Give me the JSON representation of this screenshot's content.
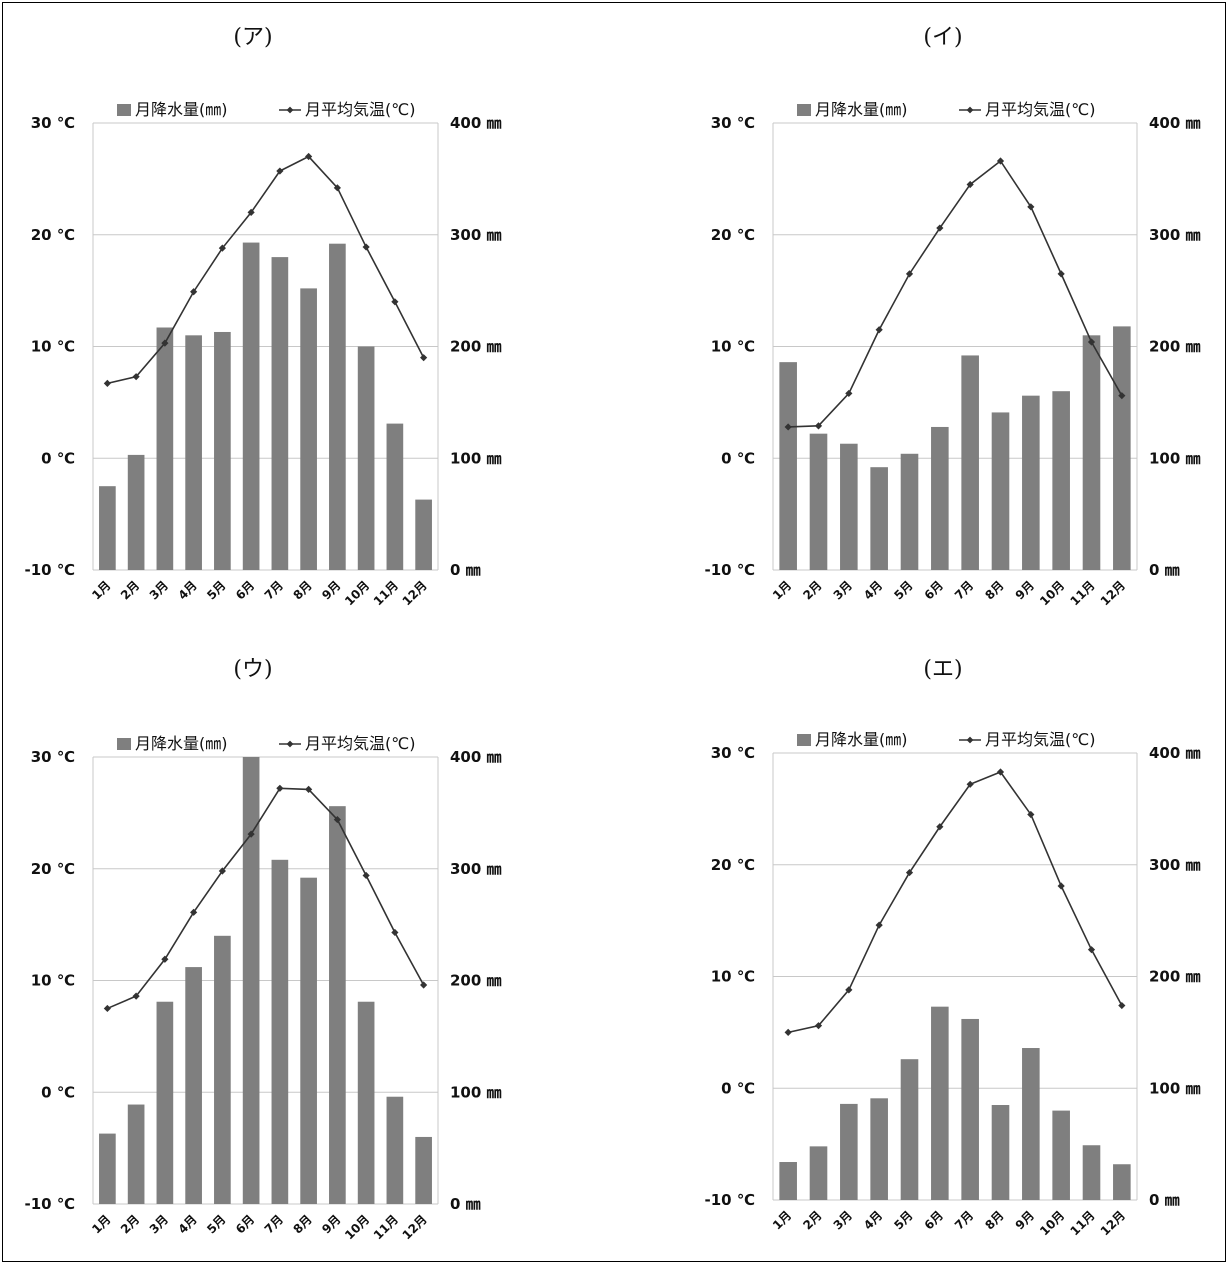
{
  "legend": {
    "precip_label": "月降水量(㎜)",
    "temp_label": "月平均気温(℃)"
  },
  "colors": {
    "bar": "#7f7f7f",
    "line": "#333333",
    "grid": "#c8c8c8"
  },
  "chart_data": [
    {
      "type": "bar",
      "title": "(ア)",
      "categories": [
        "1月",
        "2月",
        "3月",
        "4月",
        "5月",
        "6月",
        "7月",
        "8月",
        "9月",
        "10月",
        "11月",
        "12月"
      ],
      "y_left": {
        "ticks": [
          "-10 ℃",
          "0 ℃",
          "10 ℃",
          "20 ℃",
          "30 ℃"
        ],
        "range": [
          -10,
          30
        ],
        "unit": "℃"
      },
      "y_right": {
        "ticks": [
          "0 ㎜",
          "100 ㎜",
          "200 ㎜",
          "300 ㎜",
          "400 ㎜"
        ],
        "range": [
          0,
          400
        ],
        "unit": "㎜"
      },
      "series": [
        {
          "name": "月降水量(㎜)",
          "type": "bar",
          "axis": "right",
          "values": [
            75,
            103,
            217,
            210,
            213,
            293,
            280,
            252,
            292,
            200,
            131,
            63
          ]
        },
        {
          "name": "月平均気温(℃)",
          "type": "line",
          "axis": "left",
          "values": [
            6.7,
            7.3,
            10.3,
            14.9,
            18.8,
            22.0,
            25.7,
            27.0,
            24.2,
            18.9,
            14.0,
            9.0
          ]
        }
      ],
      "grid": true,
      "legend_position": "top"
    },
    {
      "type": "bar",
      "title": "(イ)",
      "categories": [
        "1月",
        "2月",
        "3月",
        "4月",
        "5月",
        "6月",
        "7月",
        "8月",
        "9月",
        "10月",
        "11月",
        "12月"
      ],
      "y_left": {
        "ticks": [
          "-10 ℃",
          "0 ℃",
          "10 ℃",
          "20 ℃",
          "30 ℃"
        ],
        "range": [
          -10,
          30
        ],
        "unit": "℃"
      },
      "y_right": {
        "ticks": [
          "0 ㎜",
          "100 ㎜",
          "200 ㎜",
          "300 ㎜",
          "400 ㎜"
        ],
        "range": [
          0,
          400
        ],
        "unit": "㎜"
      },
      "series": [
        {
          "name": "月降水量(㎜)",
          "type": "bar",
          "axis": "right",
          "values": [
            186,
            122,
            113,
            92,
            104,
            128,
            192,
            141,
            156,
            160,
            210,
            218
          ]
        },
        {
          "name": "月平均気温(℃)",
          "type": "line",
          "axis": "left",
          "values": [
            2.8,
            2.9,
            5.8,
            11.5,
            16.5,
            20.6,
            24.5,
            26.6,
            22.5,
            16.5,
            10.4,
            5.6
          ]
        }
      ],
      "grid": true,
      "legend_position": "top"
    },
    {
      "type": "bar",
      "title": "(ウ)",
      "categories": [
        "1月",
        "2月",
        "3月",
        "4月",
        "5月",
        "6月",
        "7月",
        "8月",
        "9月",
        "10月",
        "11月",
        "12月"
      ],
      "y_left": {
        "ticks": [
          "-10 ℃",
          "0 ℃",
          "10 ℃",
          "20 ℃",
          "30 ℃"
        ],
        "range": [
          -10,
          30
        ],
        "unit": "℃"
      },
      "y_right": {
        "ticks": [
          "0 ㎜",
          "100 ㎜",
          "200 ㎜",
          "300 ㎜",
          "400 ㎜"
        ],
        "range": [
          0,
          400
        ],
        "unit": "㎜"
      },
      "series": [
        {
          "name": "月降水量(㎜)",
          "type": "bar",
          "axis": "right",
          "values": [
            63,
            89,
            181,
            212,
            240,
            400,
            308,
            292,
            356,
            181,
            96,
            60
          ]
        },
        {
          "name": "月平均気温(℃)",
          "type": "line",
          "axis": "left",
          "values": [
            7.5,
            8.6,
            11.9,
            16.1,
            19.8,
            23.1,
            27.2,
            27.1,
            24.4,
            19.4,
            14.3,
            9.6
          ]
        }
      ],
      "grid": true,
      "legend_position": "top"
    },
    {
      "type": "bar",
      "title": "(エ)",
      "categories": [
        "1月",
        "2月",
        "3月",
        "4月",
        "5月",
        "6月",
        "7月",
        "8月",
        "9月",
        "10月",
        "11月",
        "12月"
      ],
      "y_left": {
        "ticks": [
          "-10 ℃",
          "0 ℃",
          "10 ℃",
          "20 ℃",
          "30 ℃"
        ],
        "range": [
          -10,
          30
        ],
        "unit": "℃"
      },
      "y_right": {
        "ticks": [
          "0 ㎜",
          "100 ㎜",
          "200 ㎜",
          "300 ㎜",
          "400 ㎜"
        ],
        "range": [
          0,
          400
        ],
        "unit": "㎜"
      },
      "series": [
        {
          "name": "月降水量(㎜)",
          "type": "bar",
          "axis": "right",
          "values": [
            34,
            48,
            86,
            91,
            126,
            173,
            162,
            85,
            136,
            80,
            49,
            32
          ]
        },
        {
          "name": "月平均気温(℃)",
          "type": "line",
          "axis": "left",
          "values": [
            5.0,
            5.6,
            8.8,
            14.6,
            19.3,
            23.4,
            27.2,
            28.3,
            24.5,
            18.1,
            12.4,
            7.4
          ]
        }
      ],
      "grid": true,
      "legend_position": "top"
    }
  ]
}
